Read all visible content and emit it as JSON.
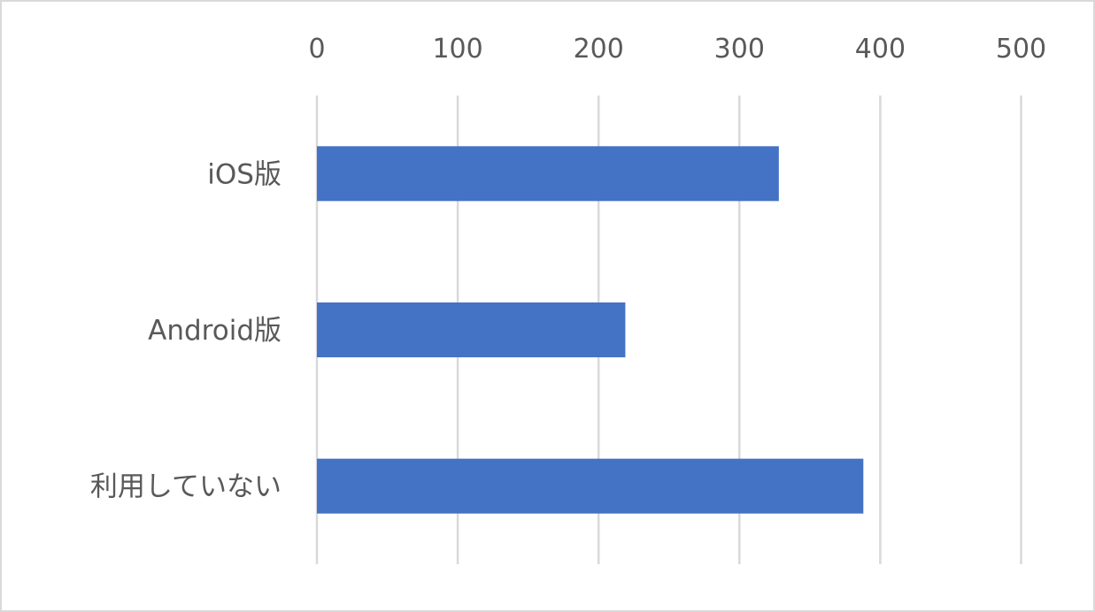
{
  "chart_data": {
    "type": "bar",
    "orientation": "horizontal",
    "title": "",
    "xlabel": "",
    "ylabel": "",
    "categories": [
      "iOS版",
      "Android版",
      "利用していない"
    ],
    "values": [
      328,
      219,
      388
    ],
    "xlim": [
      0,
      500
    ],
    "xticks": [
      "0",
      "100",
      "200",
      "300",
      "400",
      "500"
    ],
    "xaxis_position": "top",
    "grid": true,
    "legend": "none",
    "bar_color": "#4472C4",
    "grid_color": "#D9D9D9"
  }
}
